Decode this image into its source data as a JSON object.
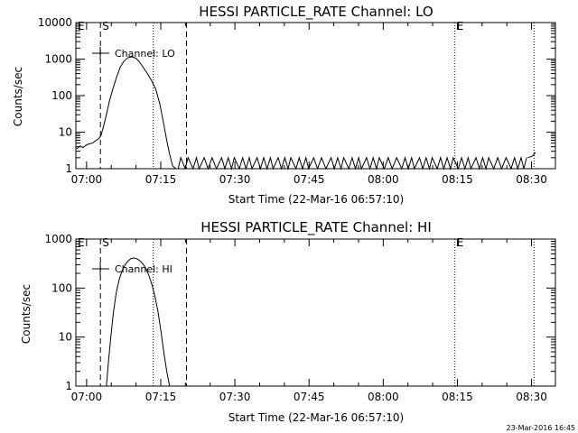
{
  "chart_data": [
    {
      "type": "line",
      "title": "HESSI PARTICLE_RATE Channel: LO",
      "xlabel": "Start Time (22-Mar-16 06:57:10)",
      "ylabel": "Counts/sec",
      "yscale": "log",
      "ylim": [
        1,
        10000
      ],
      "xlim_minutes": [
        -2.17,
        94.83
      ],
      "xticks": [
        {
          "label": "07:00",
          "min": 0
        },
        {
          "label": "07:15",
          "min": 15
        },
        {
          "label": "07:30",
          "min": 30
        },
        {
          "label": "07:45",
          "min": 45
        },
        {
          "label": "08:00",
          "min": 60
        },
        {
          "label": "08:15",
          "min": 75
        },
        {
          "label": "08:30",
          "min": 90
        }
      ],
      "yticks": [
        {
          "label": "1",
          "v": 1
        },
        {
          "label": "10",
          "v": 10
        },
        {
          "label": "100",
          "v": 100
        },
        {
          "label": "1000",
          "v": 1000
        },
        {
          "label": "10000",
          "v": 10000
        }
      ],
      "legend": {
        "label": "Channel: LO",
        "position": "top-left"
      },
      "markers": [
        {
          "label": "S",
          "min": 2.8,
          "style": "dashed"
        },
        {
          "label": "",
          "min": 13.5,
          "style": "dotted"
        },
        {
          "label": "",
          "min": 20.2,
          "style": "dashed"
        },
        {
          "label": "E",
          "min": 74.5,
          "style": "dotted"
        },
        {
          "label": "",
          "min": 90.5,
          "style": "dotted"
        }
      ],
      "series": [
        {
          "points": [
            [
              -2.0,
              3.5
            ],
            [
              -1.3,
              4.2
            ],
            [
              -0.7,
              3.8
            ],
            [
              0.0,
              4.5
            ],
            [
              0.6,
              4.8
            ],
            [
              1.2,
              5.0
            ],
            [
              1.8,
              5.8
            ],
            [
              2.4,
              6.5
            ],
            [
              2.9,
              8.0
            ],
            [
              3.4,
              14
            ],
            [
              4.0,
              30
            ],
            [
              4.6,
              70
            ],
            [
              5.3,
              150
            ],
            [
              6.0,
              300
            ],
            [
              6.8,
              600
            ],
            [
              7.6,
              900
            ],
            [
              8.4,
              1100
            ],
            [
              9.2,
              1150
            ],
            [
              10.0,
              1050
            ],
            [
              10.8,
              800
            ],
            [
              11.6,
              550
            ],
            [
              12.4,
              380
            ],
            [
              13.2,
              250
            ],
            [
              14.0,
              150
            ],
            [
              14.8,
              60
            ],
            [
              15.5,
              20
            ],
            [
              16.2,
              6
            ],
            [
              16.8,
              2.5
            ],
            [
              17.4,
              1.2
            ],
            [
              18.0,
              1
            ]
          ],
          "toggle_segment_min": [
            18.5,
            89.0
          ],
          "tail": [
            [
              89.2,
              2.0
            ],
            [
              90.2,
              2.2
            ],
            [
              90.8,
              2.8
            ]
          ]
        }
      ]
    },
    {
      "type": "line",
      "title": "HESSI PARTICLE_RATE Channel: HI",
      "xlabel": "Start Time (22-Mar-16 06:57:10)",
      "ylabel": "Counts/sec",
      "yscale": "log",
      "ylim": [
        1,
        1000
      ],
      "xlim_minutes": [
        -2.17,
        94.83
      ],
      "xticks": [
        {
          "label": "07:00",
          "min": 0
        },
        {
          "label": "07:15",
          "min": 15
        },
        {
          "label": "07:30",
          "min": 30
        },
        {
          "label": "07:45",
          "min": 45
        },
        {
          "label": "08:00",
          "min": 60
        },
        {
          "label": "08:15",
          "min": 75
        },
        {
          "label": "08:30",
          "min": 90
        }
      ],
      "yticks": [
        {
          "label": "1",
          "v": 1
        },
        {
          "label": "10",
          "v": 10
        },
        {
          "label": "100",
          "v": 100
        },
        {
          "label": "1000",
          "v": 1000
        }
      ],
      "legend": {
        "label": "Channel: HI",
        "position": "top-left"
      },
      "markers": [
        {
          "label": "S",
          "min": 2.8,
          "style": "dashed"
        },
        {
          "label": "",
          "min": 13.5,
          "style": "dotted"
        },
        {
          "label": "",
          "min": 20.2,
          "style": "dashed"
        },
        {
          "label": "E",
          "min": 74.5,
          "style": "dotted"
        },
        {
          "label": "",
          "min": 90.5,
          "style": "dotted"
        }
      ],
      "series": [
        {
          "points": [
            [
              4.0,
              1
            ],
            [
              4.4,
              3
            ],
            [
              4.9,
              10
            ],
            [
              5.4,
              30
            ],
            [
              6.0,
              80
            ],
            [
              6.6,
              150
            ],
            [
              7.2,
              230
            ],
            [
              7.8,
              300
            ],
            [
              8.4,
              360
            ],
            [
              9.0,
              400
            ],
            [
              9.6,
              410
            ],
            [
              10.2,
              395
            ],
            [
              10.8,
              360
            ],
            [
              11.4,
              310
            ],
            [
              12.0,
              250
            ],
            [
              12.6,
              180
            ],
            [
              13.2,
              120
            ],
            [
              13.8,
              70
            ],
            [
              14.4,
              35
            ],
            [
              15.0,
              14
            ],
            [
              15.6,
              5
            ],
            [
              16.2,
              2
            ],
            [
              16.8,
              1
            ]
          ]
        }
      ]
    }
  ],
  "footer": {
    "timestamp": "23-Mar-2016 16:45"
  }
}
